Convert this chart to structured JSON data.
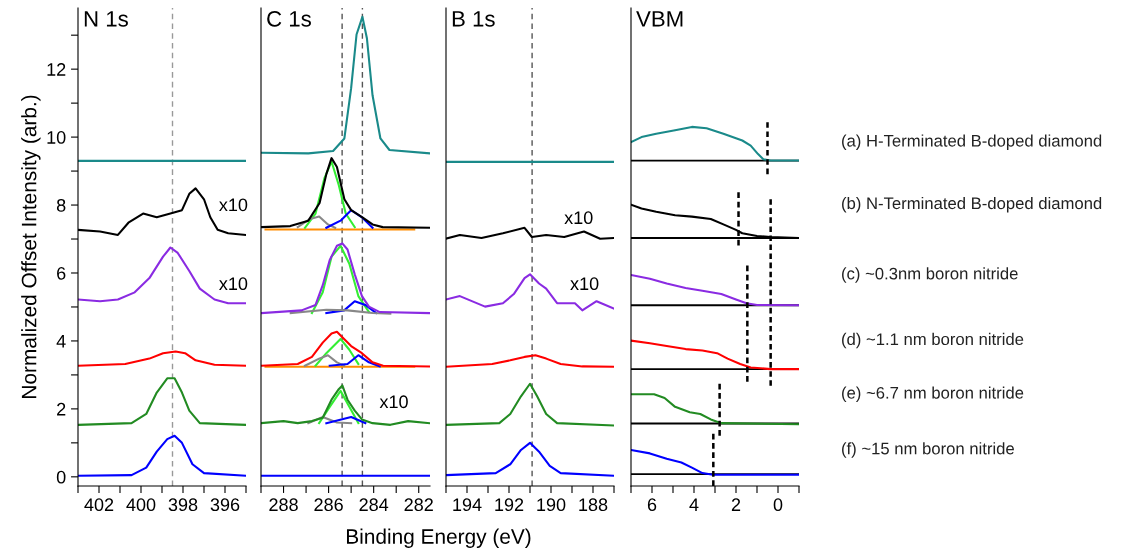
{
  "chart_data": [
    {
      "type": "line",
      "title": "N 1s",
      "ylabel": "Normalized Offset Intensity (arb.)",
      "xlim": [
        403,
        395
      ],
      "xticks": [
        {
          "value": 403,
          "label": null
        },
        402,
        {
          "value": 401,
          "label": null
        },
        400,
        {
          "value": 399,
          "label": null
        },
        398,
        {
          "value": 397,
          "label": null
        },
        396,
        {
          "value": 395,
          "label": null
        }
      ],
      "ylim": [
        -0.27,
        13.8
      ],
      "yticks": [
        0,
        {
          "value": 1,
          "label": null
        },
        2,
        {
          "value": 3,
          "label": null
        },
        4,
        {
          "value": 5,
          "label": null
        },
        6,
        {
          "value": 7,
          "label": null
        },
        8,
        {
          "value": 9,
          "label": null
        },
        10,
        {
          "value": 11,
          "label": null
        },
        12,
        {
          "value": 13,
          "label": null
        }
      ],
      "ref_lines": [
        {
          "axis": "x",
          "value": 398.5,
          "color": "#999999",
          "line_style": "dashed"
        }
      ],
      "annotations": [
        "x10",
        "x10"
      ],
      "series": [
        {
          "color": "#1a8a8a",
          "x": [
            403,
            395
          ],
          "values": [
            9.3,
            9.3
          ]
        },
        {
          "color": "#000000",
          "x": [
            403,
            401.95,
            401.1,
            400.6,
            399.9,
            399.25,
            398.6,
            398.05,
            397.7,
            397.4,
            397.0,
            396.7,
            396.35,
            395.85,
            395
          ],
          "values": [
            7.27,
            7.22,
            7.12,
            7.48,
            7.75,
            7.64,
            7.75,
            7.85,
            8.33,
            8.49,
            8.17,
            7.64,
            7.27,
            7.17,
            7.12
          ]
        },
        {
          "color": "#8a2be2",
          "x": [
            403,
            401.95,
            401.1,
            400.3,
            399.6,
            398.95,
            398.6,
            398.25,
            397.7,
            397.2,
            396.5,
            395.85,
            395
          ],
          "values": [
            5.22,
            5.17,
            5.22,
            5.43,
            5.85,
            6.48,
            6.75,
            6.59,
            6.06,
            5.54,
            5.22,
            5.11,
            5.11
          ]
        },
        {
          "color": "#ff0000",
          "x": [
            403,
            400.75,
            399.6,
            398.95,
            398.35,
            397.9,
            397.4,
            396.5,
            395
          ],
          "values": [
            3.27,
            3.32,
            3.48,
            3.64,
            3.69,
            3.64,
            3.43,
            3.3,
            3.27
          ]
        },
        {
          "color": "#228b22",
          "x": [
            403,
            400.45,
            399.75,
            399.25,
            398.75,
            398.4,
            398.05,
            397.7,
            397.2,
            395
          ],
          "values": [
            1.53,
            1.58,
            1.85,
            2.48,
            2.9,
            2.9,
            2.48,
            1.95,
            1.58,
            1.53
          ]
        },
        {
          "color": "#0000ff",
          "x": [
            403,
            400.45,
            399.75,
            399.25,
            398.75,
            398.4,
            398.05,
            397.55,
            397.0,
            395
          ],
          "values": [
            0.03,
            0.05,
            0.27,
            0.74,
            1.11,
            1.21,
            1.0,
            0.37,
            0.11,
            0.03
          ]
        }
      ]
    },
    {
      "type": "line",
      "title": "C 1s",
      "xlabel": "Binding Energy (eV)",
      "tick_labels": "x",
      "xlim": [
        289,
        281.5
      ],
      "xticks": [
        {
          "value": 289,
          "label": null
        },
        288,
        {
          "value": 287,
          "label": null
        },
        286,
        {
          "value": 285,
          "label": null
        },
        284,
        {
          "value": 283,
          "label": null
        },
        282
      ],
      "ylim": [
        -0.27,
        13.8
      ],
      "ref_lines": [
        {
          "axis": "x",
          "value": 285.4,
          "color": "#555555",
          "line_style": "dashed"
        },
        {
          "axis": "x",
          "value": 284.5,
          "color": "#555555",
          "line_style": "dashed"
        }
      ],
      "annotations": [
        "x10"
      ],
      "series": [
        {
          "color": "#1a8a8a",
          "x": [
            288.98,
            286.9,
            285.8,
            285.3,
            285.0,
            284.76,
            284.5,
            284.3,
            284.05,
            283.7,
            283.3,
            281.5
          ],
          "values": [
            9.54,
            9.52,
            9.59,
            9.96,
            11.44,
            13.02,
            13.54,
            12.91,
            11.23,
            9.96,
            9.62,
            9.52
          ]
        },
        {
          "color": "#ff8c00",
          "x": [
            288.8,
            282.2
          ],
          "values": [
            7.28,
            7.28
          ]
        },
        {
          "color": "#33ee33",
          "x": [
            287.05,
            286.58,
            286.18,
            285.87,
            285.55,
            285.24,
            284.84
          ],
          "values": [
            7.33,
            7.75,
            8.8,
            9.28,
            8.59,
            7.75,
            7.35
          ]
        },
        {
          "color": "#888888",
          "x": [
            287.37,
            286.82,
            286.42,
            286.03,
            285.71
          ],
          "values": [
            7.35,
            7.59,
            7.66,
            7.43,
            7.33
          ]
        },
        {
          "color": "#0000ff",
          "x": [
            286.1,
            285.47,
            285.0,
            284.52,
            284.05
          ],
          "values": [
            7.33,
            7.54,
            7.85,
            7.64,
            7.33
          ]
        },
        {
          "color": "#000000",
          "x": [
            288.98,
            287.7,
            286.9,
            286.4,
            286.1,
            285.87,
            285.63,
            285.3,
            285.0,
            284.5,
            284.05,
            283.6,
            281.5
          ],
          "values": [
            7.35,
            7.38,
            7.54,
            8.06,
            8.91,
            9.38,
            9.12,
            8.17,
            7.85,
            7.64,
            7.43,
            7.35,
            7.33
          ]
        },
        {
          "color": "#33ee33",
          "x": [
            286.74,
            286.26,
            285.87,
            285.47,
            285.08,
            284.68,
            284.21
          ],
          "values": [
            4.82,
            5.43,
            6.48,
            6.8,
            6.27,
            5.32,
            4.85
          ]
        },
        {
          "color": "#0000ff",
          "x": [
            286.1,
            285.31,
            284.84,
            284.37,
            283.89
          ],
          "values": [
            4.82,
            4.9,
            5.17,
            5.06,
            4.82
          ]
        },
        {
          "color": "#888888",
          "x": [
            287.68,
            286.1,
            285.16,
            284.05,
            283.26
          ],
          "values": [
            4.82,
            4.92,
            4.9,
            4.82,
            4.8
          ]
        },
        {
          "color": "#8a2be2",
          "x": [
            288.98,
            287.2,
            286.58,
            286.26,
            285.95,
            285.63,
            285.39,
            285.16,
            284.84,
            284.52,
            284.21,
            283.73,
            281.52
          ],
          "values": [
            4.82,
            4.9,
            5.06,
            5.64,
            6.38,
            6.8,
            6.87,
            6.69,
            5.96,
            5.32,
            5.01,
            4.85,
            4.82
          ]
        },
        {
          "color": "#ff8c00",
          "x": [
            288.8,
            282.2
          ],
          "values": [
            3.24,
            3.24
          ]
        },
        {
          "color": "#33ee33",
          "x": [
            286.58,
            286.1,
            285.47,
            285.08,
            284.68
          ],
          "values": [
            3.27,
            3.64,
            4.06,
            3.74,
            3.32
          ]
        },
        {
          "color": "#888888",
          "x": [
            287.05,
            286.42,
            286.03,
            285.63,
            285.31
          ],
          "values": [
            3.27,
            3.48,
            3.58,
            3.37,
            3.27
          ]
        },
        {
          "color": "#0000ff",
          "x": [
            285.95,
            285.16,
            284.68,
            284.21,
            283.73
          ],
          "values": [
            3.27,
            3.32,
            3.58,
            3.37,
            3.25
          ]
        },
        {
          "color": "#ff0000",
          "x": [
            288.98,
            287.37,
            286.74,
            286.26,
            285.87,
            285.63,
            285.39,
            285.0,
            284.52,
            284.05,
            283.58,
            281.52
          ],
          "values": [
            3.27,
            3.32,
            3.53,
            3.95,
            4.22,
            4.27,
            4.11,
            3.85,
            3.64,
            3.37,
            3.27,
            3.25
          ]
        },
        {
          "color": "#33ee33",
          "x": [
            286.42,
            285.95,
            285.47,
            285.08,
            284.68
          ],
          "values": [
            1.58,
            2.06,
            2.53,
            2.06,
            1.58
          ]
        },
        {
          "color": "#888888",
          "x": [
            286.9,
            286.26,
            285.63,
            285.0
          ],
          "values": [
            1.58,
            1.76,
            1.6,
            1.58
          ]
        },
        {
          "color": "#0000ff",
          "x": [
            286.1,
            285.0,
            284.37
          ],
          "values": [
            1.58,
            1.76,
            1.58
          ]
        },
        {
          "color": "#228b22",
          "x": [
            288.98,
            288.0,
            287.37,
            286.74,
            286.26,
            285.87,
            285.55,
            285.39,
            285.16,
            284.84,
            284.52,
            284.05,
            283.26,
            282.47,
            281.52
          ],
          "values": [
            1.58,
            1.64,
            1.58,
            1.64,
            1.74,
            2.27,
            2.58,
            2.69,
            2.27,
            1.95,
            1.69,
            1.58,
            1.53,
            1.64,
            1.58
          ]
        },
        {
          "color": "#0000ff",
          "x": [
            289,
            281.5
          ],
          "values": [
            0.03,
            0.03
          ]
        }
      ]
    },
    {
      "type": "line",
      "title": "B 1s",
      "tick_labels": "x",
      "xlim": [
        195,
        187
      ],
      "xticks": [
        {
          "value": 195,
          "label": null
        },
        194,
        {
          "value": 193,
          "label": null
        },
        192,
        {
          "value": 191,
          "label": null
        },
        190,
        {
          "value": 189,
          "label": null
        },
        188,
        {
          "value": 187,
          "label": null
        }
      ],
      "ylim": [
        -0.27,
        13.8
      ],
      "ref_lines": [
        {
          "axis": "x",
          "value": 190.9,
          "color": "#555555",
          "line_style": "dashed"
        }
      ],
      "annotations": [
        "x10",
        "x10"
      ],
      "series": [
        {
          "color": "#1a8a8a",
          "x": [
            195,
            187
          ],
          "values": [
            9.27,
            9.27
          ]
        },
        {
          "color": "#000000",
          "x": [
            195,
            194.34,
            193.31,
            192.29,
            191.26,
            190.91,
            190.23,
            189.37,
            188.43,
            187.66,
            187.0
          ],
          "values": [
            7.01,
            7.12,
            7.03,
            7.17,
            7.33,
            7.06,
            7.12,
            7.06,
            7.22,
            7.01,
            7.03
          ]
        },
        {
          "color": "#8a2be2",
          "x": [
            195,
            194.34,
            193.14,
            192.29,
            191.77,
            191.26,
            191.0,
            190.57,
            190.23,
            189.71,
            188.86,
            188.51,
            187.83,
            187.0
          ],
          "values": [
            5.22,
            5.32,
            5.01,
            5.11,
            5.38,
            5.85,
            5.96,
            5.69,
            5.54,
            5.11,
            5.11,
            4.9,
            5.17,
            4.95
          ]
        },
        {
          "color": "#ff0000",
          "x": [
            195,
            192.8,
            191.94,
            191.26,
            190.74,
            190.23,
            189.54,
            188.51,
            187.0
          ],
          "values": [
            3.24,
            3.32,
            3.43,
            3.53,
            3.58,
            3.48,
            3.32,
            3.25,
            3.24
          ]
        },
        {
          "color": "#228b22",
          "x": [
            195,
            192.46,
            191.94,
            191.43,
            191.0,
            190.66,
            190.23,
            189.71,
            187.0
          ],
          "values": [
            1.53,
            1.58,
            1.85,
            2.37,
            2.74,
            2.37,
            1.85,
            1.58,
            1.51
          ]
        },
        {
          "color": "#0000ff",
          "x": [
            195,
            192.63,
            191.94,
            191.43,
            191.0,
            190.57,
            190.06,
            189.54,
            187.0
          ],
          "values": [
            0.05,
            0.11,
            0.37,
            0.79,
            1.0,
            0.74,
            0.32,
            0.11,
            0.03
          ]
        }
      ]
    },
    {
      "type": "line",
      "title": "VBM",
      "tick_labels": "x",
      "xlim": [
        7,
        -1
      ],
      "xticks": [
        {
          "value": 7,
          "label": null
        },
        6,
        {
          "value": 5,
          "label": null
        },
        4,
        {
          "value": 3,
          "label": null
        },
        2,
        {
          "value": 1,
          "label": null
        },
        0,
        {
          "value": -1,
          "label": null
        }
      ],
      "ylim": [
        -0.27,
        13.8
      ],
      "ref_lines": [
        {
          "axis": "y",
          "value": 9.31,
          "color": "#000000"
        },
        {
          "axis": "y",
          "value": 7.03,
          "color": "#000000"
        },
        {
          "axis": "y",
          "value": 5.05,
          "color": "#000000"
        },
        {
          "axis": "y",
          "value": 3.17,
          "color": "#000000"
        },
        {
          "axis": "y",
          "value": 1.57,
          "color": "#000000"
        },
        {
          "axis": "y",
          "value": 0.08,
          "color": "#000000"
        }
      ],
      "series": [
        {
          "name": "(a) H-Terminated B-doped diamond",
          "color": "#1a8a8a",
          "x": [
            7,
            6.5,
            5.8,
            4.9,
            4.1,
            3.4,
            2.6,
            1.7,
            1.3,
            0.95,
            0.7,
            0.35,
            -1
          ],
          "values": [
            9.85,
            10.0,
            10.1,
            10.2,
            10.3,
            10.26,
            10.1,
            9.9,
            9.75,
            9.5,
            9.35,
            9.31,
            9.31
          ]
        },
        {
          "name": "(b) N-Terminated B-doped diamond",
          "color": "#000000",
          "x": [
            7,
            6.5,
            5.8,
            4.9,
            4.1,
            3.2,
            2.6,
            2.0,
            1.7,
            1.0,
            0.35,
            -1
          ],
          "values": [
            8.01,
            7.9,
            7.8,
            7.7,
            7.66,
            7.59,
            7.43,
            7.27,
            7.17,
            7.09,
            7.06,
            7.03
          ]
        },
        {
          "name": "(c) ~0.3nm boron nitride",
          "color": "#8a2be2",
          "x": [
            7,
            6.1,
            5.3,
            4.4,
            3.6,
            2.7,
            2.0,
            1.5,
            1.0,
            -1
          ],
          "values": [
            5.94,
            5.83,
            5.69,
            5.56,
            5.48,
            5.38,
            5.22,
            5.11,
            5.06,
            5.05
          ]
        },
        {
          "name": "(d) ~1.1 nm boron nitride",
          "color": "#ff0000",
          "x": [
            7,
            6.1,
            5.3,
            4.4,
            3.6,
            2.9,
            2.4,
            1.8,
            1.3,
            0.35,
            -1
          ],
          "values": [
            4.01,
            3.93,
            3.85,
            3.76,
            3.72,
            3.64,
            3.48,
            3.32,
            3.22,
            3.17,
            3.17
          ]
        },
        {
          "name": "(e) ~6.7 nm boron nitride",
          "color": "#228b22",
          "x": [
            7,
            6.5,
            5.9,
            5.4,
            4.9,
            4.2,
            3.7,
            3.2,
            2.7,
            -1
          ],
          "values": [
            2.43,
            2.43,
            2.43,
            2.32,
            2.06,
            1.9,
            1.85,
            1.69,
            1.58,
            1.55
          ]
        },
        {
          "name": "(f) ~15 nm boron nitride",
          "color": "#0000ff",
          "x": [
            7,
            6.1,
            5.3,
            4.6,
            4.1,
            3.6,
            3.1,
            -1
          ],
          "values": [
            0.79,
            0.69,
            0.53,
            0.42,
            0.27,
            0.11,
            0.06,
            0.06
          ]
        },
        {
          "color": "#000000",
          "line_style": "dashed",
          "x": [
            0.5,
            0.5
          ],
          "values": [
            8.91,
            10.44
          ]
        },
        {
          "color": "#000000",
          "line_style": "dashed",
          "x": [
            1.88,
            1.88
          ],
          "values": [
            6.81,
            8.38
          ]
        },
        {
          "color": "#000000",
          "line_style": "dashed",
          "x": [
            0.35,
            0.35
          ],
          "values": [
            2.68,
            8.17
          ]
        },
        {
          "color": "#000000",
          "line_style": "dashed",
          "x": [
            1.46,
            1.46
          ],
          "values": [
            2.8,
            6.22
          ]
        },
        {
          "color": "#000000",
          "line_style": "dashed",
          "x": [
            2.78,
            2.78
          ],
          "values": [
            1.21,
            2.74
          ]
        },
        {
          "color": "#000000",
          "line_style": "dashed",
          "x": [
            3.08,
            3.08
          ],
          "values": [
            -0.27,
            1.27
          ]
        }
      ]
    }
  ]
}
